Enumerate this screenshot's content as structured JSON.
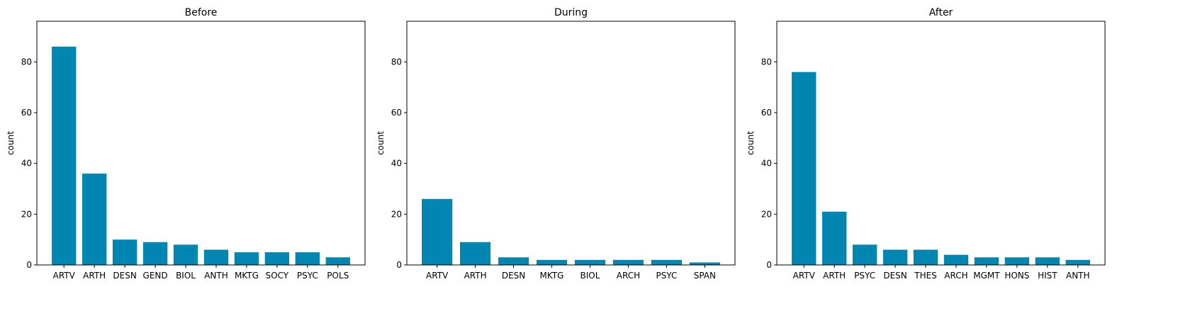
{
  "colors": {
    "bar": "#0086b0",
    "axis": "#000000",
    "background": "#ffffff"
  },
  "chart_data": [
    {
      "type": "bar",
      "title": "Before",
      "xlabel": "",
      "ylabel": "count",
      "ylim": [
        0,
        96
      ],
      "yticks": [
        0,
        20,
        40,
        60,
        80
      ],
      "grid": false,
      "categories": [
        "ARTV",
        "ARTH",
        "DESN",
        "GEND",
        "BIOL",
        "ANTH",
        "MKTG",
        "SOCY",
        "PSYC",
        "POLS"
      ],
      "values": [
        86,
        36,
        10,
        9,
        8,
        6,
        5,
        5,
        5,
        3
      ]
    },
    {
      "type": "bar",
      "title": "During",
      "xlabel": "",
      "ylabel": "count",
      "ylim": [
        0,
        96
      ],
      "yticks": [
        0,
        20,
        40,
        60,
        80
      ],
      "grid": false,
      "categories": [
        "ARTV",
        "ARTH",
        "DESN",
        "MKTG",
        "BIOL",
        "ARCH",
        "PSYC",
        "SPAN"
      ],
      "values": [
        26,
        9,
        3,
        2,
        2,
        2,
        2,
        1
      ]
    },
    {
      "type": "bar",
      "title": "After",
      "xlabel": "",
      "ylabel": "count",
      "ylim": [
        0,
        96
      ],
      "yticks": [
        0,
        20,
        40,
        60,
        80
      ],
      "grid": false,
      "categories": [
        "ARTV",
        "ARTH",
        "PSYC",
        "DESN",
        "THES",
        "ARCH",
        "MGMT",
        "HONS",
        "HIST",
        "ANTH"
      ],
      "values": [
        76,
        21,
        8,
        6,
        6,
        4,
        3,
        3,
        3,
        2
      ]
    }
  ]
}
